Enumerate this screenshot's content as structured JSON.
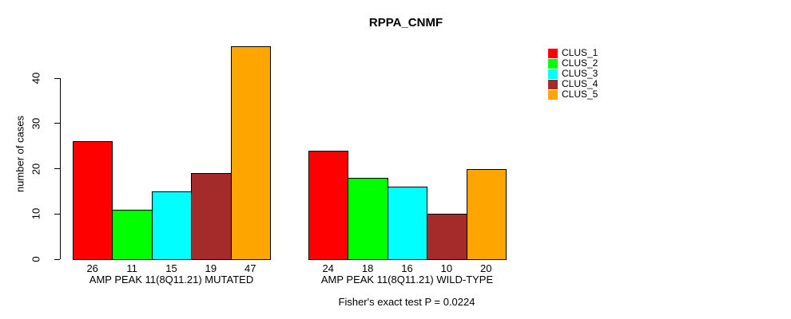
{
  "chart_data": {
    "type": "bar",
    "title": "RPPA_CNMF",
    "ylabel": "number of cases",
    "xlabel": "",
    "ylim": [
      0,
      40
    ],
    "yticks": [
      0,
      10,
      20,
      30,
      40
    ],
    "grid": false,
    "legend_position": "right",
    "legend": [
      {
        "label": "CLUS_1",
        "color": "#FF0000"
      },
      {
        "label": "CLUS_2",
        "color": "#00FF00"
      },
      {
        "label": "CLUS_3",
        "color": "#00FFFF"
      },
      {
        "label": "CLUS_4",
        "color": "#A52A2A"
      },
      {
        "label": "CLUS_5",
        "color": "#FFA500"
      }
    ],
    "groups": [
      {
        "label": "AMP PEAK 11(8Q11.21) MUTATED",
        "values": [
          26,
          11,
          15,
          19,
          47
        ]
      },
      {
        "label": "AMP PEAK 11(8Q11.21) WILD-TYPE",
        "values": [
          24,
          18,
          16,
          10,
          20
        ]
      }
    ],
    "annotation": "Fisher's exact test P = 0.0224"
  }
}
